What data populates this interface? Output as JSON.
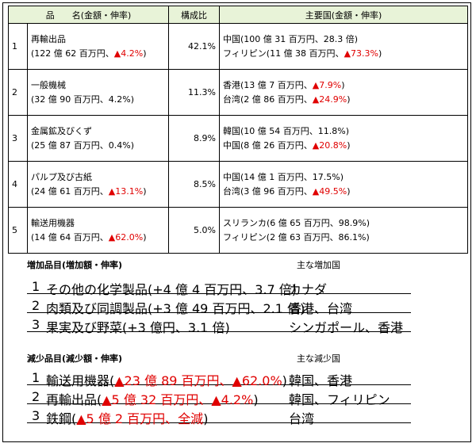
{
  "header": {
    "item": "品　　名(金額・伸率)",
    "share": "構成比",
    "countries": "主要国(金額・伸率)"
  },
  "rows": [
    {
      "rank": "1",
      "name": "再輸出品",
      "detail_a": "(122 億 62 百万円、",
      "detail_neg": "▲4.2%",
      "detail_b": ")",
      "share": "42.1%",
      "c1_a": "中国(100 億 31 百万円、28.3 倍)",
      "c1_neg": "",
      "c1_b": "",
      "c2_a": "フィリピン(11 億 38 百万円、",
      "c2_neg": "▲73.3%",
      "c2_b": ")"
    },
    {
      "rank": "2",
      "name": "一般機械",
      "detail_a": "(32 億 90 百万円、4.2%)",
      "detail_neg": "",
      "detail_b": "",
      "share": "11.3%",
      "c1_a": "香港(13 億 7 百万円、",
      "c1_neg": "▲7.9%",
      "c1_b": ")",
      "c2_a": "台湾(2 億 86 百万円、",
      "c2_neg": "▲24.9%",
      "c2_b": ")"
    },
    {
      "rank": "3",
      "name": "金属鉱及びくず",
      "detail_a": "(25 億 87 百万円、0.4%)",
      "detail_neg": "",
      "detail_b": "",
      "share": "8.9%",
      "c1_a": "韓国(10 億 54 百万円、11.8%)",
      "c1_neg": "",
      "c1_b": "",
      "c2_a": "中国(8 億 26 百万円、",
      "c2_neg": "▲20.8%",
      "c2_b": ")"
    },
    {
      "rank": "4",
      "name": "パルプ及び古紙",
      "detail_a": "(24 億 61 百万円、",
      "detail_neg": "▲13.1%",
      "detail_b": ")",
      "share": "8.5%",
      "c1_a": "中国(14 億 1 百万円、17.5%)",
      "c1_neg": "",
      "c1_b": "",
      "c2_a": "台湾(3 億 96 百万円、",
      "c2_neg": "▲49.5%",
      "c2_b": ")"
    },
    {
      "rank": "5",
      "name": "輸送用機器",
      "detail_a": "(14 億 64 百万円、",
      "detail_neg": "▲62.0%",
      "detail_b": ")",
      "share": "5.0%",
      "c1_a": "スリランカ(6 億 65 百万円、98.9%)",
      "c1_neg": "",
      "c1_b": "",
      "c2_a": "フィリピン(2 億 63 百万円、86.1%)",
      "c2_neg": "",
      "c2_b": ""
    }
  ],
  "increase": {
    "heading": "増加品目(増加額・伸率)",
    "country_heading": "主な増加国",
    "items": [
      {
        "num": "1",
        "text_a": "その他の化学製品(+4 億 4 百万円、3.7 倍)",
        "text_neg": "",
        "text_b": "",
        "country": "カナダ"
      },
      {
        "num": "2",
        "text_a": "肉類及び同調製品(+3 億 49 百万円、2.1 倍)",
        "text_neg": "",
        "text_b": "",
        "country": "香港、台湾"
      },
      {
        "num": "3",
        "text_a": "果実及び野菜(+3 億円、3.1 倍)",
        "text_neg": "",
        "text_b": "",
        "country": "シンガポール、香港"
      }
    ]
  },
  "decrease": {
    "heading": "減少品目(減少額・伸率)",
    "country_heading": "主な減少国",
    "items": [
      {
        "num": "1",
        "text_a": "輸送用機器(",
        "text_neg": "▲23 億 89 百万円、▲62.0%",
        "text_b": ")",
        "country": "韓国、香港"
      },
      {
        "num": "2",
        "text_a": "再輸出品(",
        "text_neg": "▲5 億 32 百万円、▲4.2%",
        "text_b": ")",
        "country": "韓国、フィリピン"
      },
      {
        "num": "3",
        "text_a": "鉄鋼(",
        "text_neg": "▲5 億 2 百万円、全減",
        "text_b": ")",
        "country": "台湾"
      }
    ]
  }
}
